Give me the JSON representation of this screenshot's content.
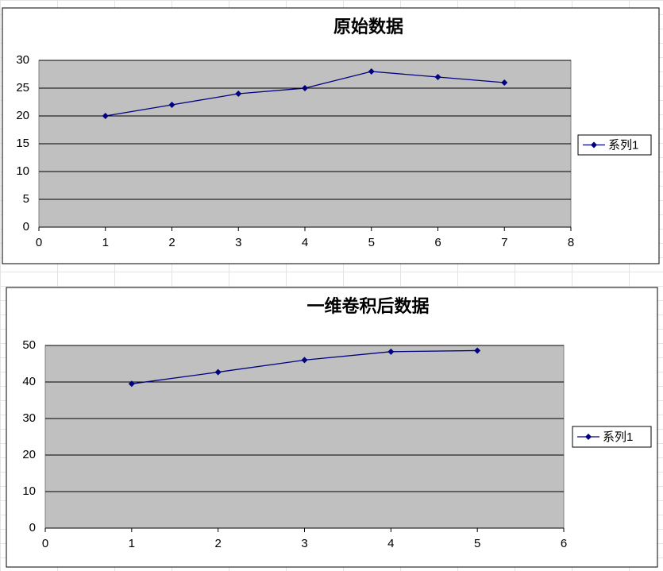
{
  "chart_data": [
    {
      "type": "line",
      "title": "原始数据",
      "x": [
        1,
        2,
        3,
        4,
        5,
        6,
        7
      ],
      "series": [
        {
          "name": "系列1",
          "color": "#000080",
          "values": [
            20,
            22,
            24,
            25,
            28,
            27,
            26
          ]
        }
      ],
      "xlim": [
        0,
        8
      ],
      "xticks": [
        0,
        1,
        2,
        3,
        4,
        5,
        6,
        7,
        8
      ],
      "ylim": [
        0,
        30
      ],
      "yticks": [
        0,
        5,
        10,
        15,
        20,
        25,
        30
      ],
      "grid": true,
      "legend": "right"
    },
    {
      "type": "line",
      "title": "一维卷积后数据",
      "x": [
        1,
        2,
        3,
        4,
        5
      ],
      "series": [
        {
          "name": "系列1",
          "color": "#000080",
          "values": [
            39.5,
            42.7,
            46,
            48.3,
            48.6
          ]
        }
      ],
      "xlim": [
        0,
        6
      ],
      "xticks": [
        0,
        1,
        2,
        3,
        4,
        5,
        6
      ],
      "ylim": [
        0,
        50
      ],
      "yticks": [
        0,
        10,
        20,
        30,
        40,
        50
      ],
      "grid": true,
      "legend": "right"
    }
  ]
}
